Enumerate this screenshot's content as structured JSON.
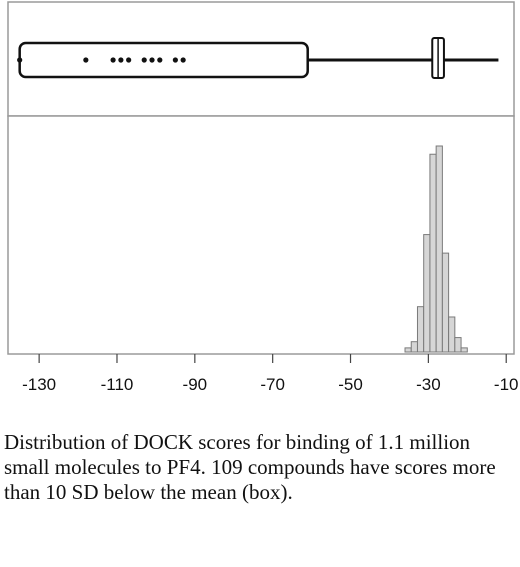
{
  "chart_data": {
    "type": "histogram",
    "components": [
      "box plot",
      "histogram"
    ],
    "xlim": [
      -138,
      -8
    ],
    "x_ticks": [
      -130,
      -110,
      -90,
      -70,
      -50,
      -30,
      -10
    ],
    "x_tick_labels": [
      "-130",
      "-110",
      "-90",
      "-70",
      "-50",
      "-30",
      "-10"
    ],
    "histogram": {
      "bin_width": 1.6,
      "bins": [
        {
          "x0": -36.0,
          "count": 0.02
        },
        {
          "x0": -34.4,
          "count": 0.05
        },
        {
          "x0": -32.8,
          "count": 0.22
        },
        {
          "x0": -31.2,
          "count": 0.57
        },
        {
          "x0": -29.6,
          "count": 0.96
        },
        {
          "x0": -28.0,
          "count": 1.0
        },
        {
          "x0": -26.4,
          "count": 0.48
        },
        {
          "x0": -24.8,
          "count": 0.17
        },
        {
          "x0": -23.2,
          "count": 0.07
        },
        {
          "x0": -21.6,
          "count": 0.02
        }
      ]
    },
    "box_plot": {
      "outlier_range": [
        -135,
        -61
      ],
      "iqr": [
        -29,
        -26
      ],
      "median": -27.5,
      "whiskers": [
        -61,
        -12
      ],
      "outliers": [
        -135,
        -118,
        -111,
        -109,
        -107,
        -103,
        -101,
        -99,
        -95,
        -93
      ]
    }
  },
  "caption": "Distribution of DOCK scores for binding of 1.1 million small molecules to PF4.  109 compounds have scores more than 10 SD below the mean (box)."
}
